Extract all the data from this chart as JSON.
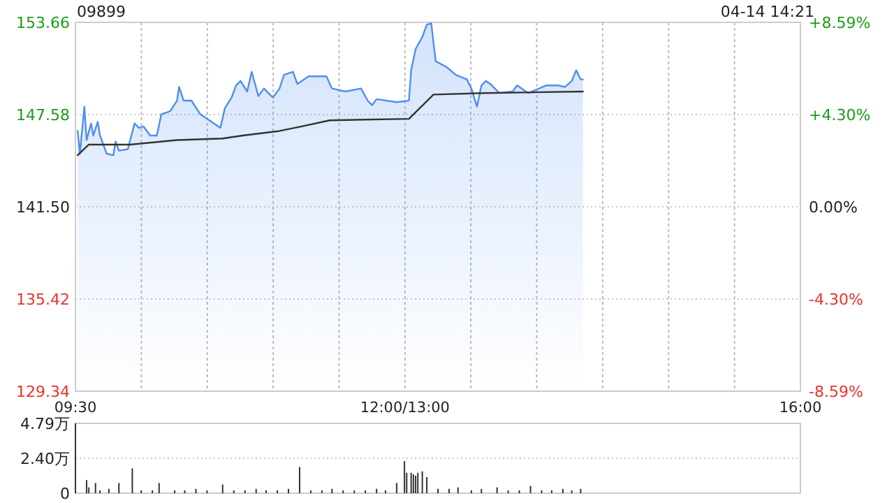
{
  "chart_data": [
    {
      "type": "line",
      "title": "09899",
      "annotations": [
        "04-14 14:21"
      ],
      "xlim": [
        9.5,
        16
      ],
      "xticks": [
        {
          "value": 9.5,
          "label": "09:30"
        },
        {
          "value": 10.091,
          "label": null
        },
        {
          "value": 10.682,
          "label": null
        },
        {
          "value": 11.273,
          "label": null
        },
        {
          "value": 11.864,
          "label": null
        },
        {
          "value": 12.455,
          "label": "12:00/13:00"
        },
        {
          "value": 13.045,
          "label": null
        },
        {
          "value": 13.636,
          "label": null
        },
        {
          "value": 14.227,
          "label": null
        },
        {
          "value": 14.818,
          "label": null
        },
        {
          "value": 15.409,
          "label": null
        },
        {
          "value": 16,
          "label": "16:00"
        }
      ],
      "ylim": [
        129.34,
        153.66
      ],
      "yticks": [
        129.34,
        135.42,
        {
          "value": 141.5,
          "label": "141.50"
        },
        147.58,
        153.66
      ],
      "y2lim": [
        -8.59,
        8.59
      ],
      "y2ticks": [
        {
          "value": -8.59,
          "label": "-8.59%"
        },
        {
          "value": -4.3,
          "label": "-4.30%"
        },
        {
          "value": 0,
          "label": "0.00%"
        },
        {
          "value": 4.3,
          "label": "+4.30%"
        },
        {
          "value": 8.59,
          "label": "+8.59%"
        }
      ],
      "grid": true,
      "series": [
        {
          "type": "area",
          "color": "#4f8ef0",
          "x": [
            9.52,
            9.54,
            9.58,
            9.6,
            9.64,
            9.66,
            9.7,
            9.72,
            9.78,
            9.84,
            9.86,
            9.89,
            9.97,
            10.03,
            10.07,
            10.11,
            10.17,
            10.23,
            10.27,
            10.35,
            10.41,
            10.43,
            10.47,
            10.54,
            10.62,
            10.68,
            10.74,
            10.8,
            10.84,
            10.9,
            10.94,
            10.98,
            11.04,
            11.08,
            11.14,
            11.19,
            11.27,
            11.33,
            11.37,
            11.45,
            11.49,
            11.59,
            11.75,
            11.8,
            11.92,
            12.06,
            12.12,
            12.16,
            12.2,
            12.38,
            12.49,
            12.51,
            12.55,
            12.61,
            12.65,
            12.69,
            12.73,
            12.83,
            12.91,
            13.01,
            13.05,
            13.1,
            13.14,
            13.18,
            13.22,
            13.3,
            13.42,
            13.46,
            13.56,
            13.72,
            13.83,
            13.89,
            13.95,
            13.99,
            14.03,
            14.05
          ],
          "values": [
            146.5,
            145.0,
            148.1,
            145.9,
            147.0,
            146.2,
            147.1,
            146.2,
            145.0,
            144.9,
            145.8,
            145.2,
            145.3,
            147.0,
            146.7,
            146.8,
            146.2,
            146.2,
            147.6,
            147.8,
            148.5,
            149.4,
            148.5,
            148.5,
            147.6,
            147.3,
            147.0,
            146.7,
            148.0,
            148.7,
            149.5,
            149.8,
            149.1,
            150.4,
            148.8,
            149.3,
            148.7,
            149.3,
            150.2,
            150.4,
            149.6,
            150.1,
            150.1,
            149.3,
            149.1,
            149.3,
            148.5,
            148.2,
            148.6,
            148.4,
            148.5,
            150.5,
            151.9,
            152.7,
            153.5,
            153.6,
            151.1,
            150.7,
            150.2,
            149.9,
            149.3,
            148.1,
            149.5,
            149.8,
            149.6,
            149.0,
            149.1,
            149.5,
            149.0,
            149.5,
            149.5,
            149.4,
            149.8,
            150.5,
            149.9,
            149.9
          ]
        },
        {
          "type": "line",
          "color": "#333333",
          "x": [
            9.52,
            9.62,
            9.83,
            9.99,
            10.41,
            10.82,
            11.0,
            11.33,
            11.53,
            11.78,
            12.49,
            12.71,
            13.16,
            14.05
          ],
          "values": [
            144.9,
            145.6,
            145.6,
            145.6,
            145.9,
            146.0,
            146.2,
            146.5,
            146.8,
            147.2,
            147.3,
            148.9,
            149.0,
            149.1
          ]
        }
      ]
    },
    {
      "type": "bar",
      "color": "#333333",
      "xlim": [
        9.5,
        16
      ],
      "ylim": [
        0,
        4.79
      ],
      "yticks": [
        0,
        {
          "value": 2.4,
          "label": "2.40万"
        },
        {
          "value": 4.79,
          "label": "4.79万"
        }
      ],
      "grid": "y",
      "tick_labels": "y",
      "x": [
        9.5,
        9.6,
        9.62,
        9.68,
        9.72,
        9.8,
        9.89,
        10.01,
        10.09,
        10.19,
        10.25,
        10.39,
        10.48,
        10.58,
        10.68,
        10.82,
        10.92,
        11.02,
        11.12,
        11.21,
        11.31,
        11.41,
        11.51,
        11.61,
        11.71,
        11.8,
        11.9,
        12.0,
        12.1,
        12.2,
        12.28,
        12.38,
        12.45,
        12.47,
        12.51,
        12.53,
        12.55,
        12.57,
        12.61,
        12.65,
        12.75,
        12.85,
        12.93,
        13.05,
        13.14,
        13.28,
        13.38,
        13.48,
        13.58,
        13.68,
        13.77,
        13.87,
        13.95,
        14.03
      ],
      "values": [
        4.79,
        0.9,
        0.4,
        0.7,
        0.2,
        0.3,
        0.7,
        1.7,
        0.2,
        0.2,
        0.7,
        0.2,
        0.2,
        0.3,
        0.2,
        0.6,
        0.2,
        0.2,
        0.3,
        0.2,
        0.2,
        0.3,
        1.8,
        0.2,
        0.2,
        0.3,
        0.2,
        0.2,
        0.2,
        0.3,
        0.2,
        0.7,
        2.2,
        1.4,
        1.4,
        1.3,
        1.2,
        1.4,
        1.5,
        1.1,
        0.3,
        0.3,
        0.4,
        0.2,
        0.3,
        0.4,
        0.2,
        0.2,
        0.5,
        0.2,
        0.2,
        0.3,
        0.2,
        0.3
      ]
    }
  ]
}
